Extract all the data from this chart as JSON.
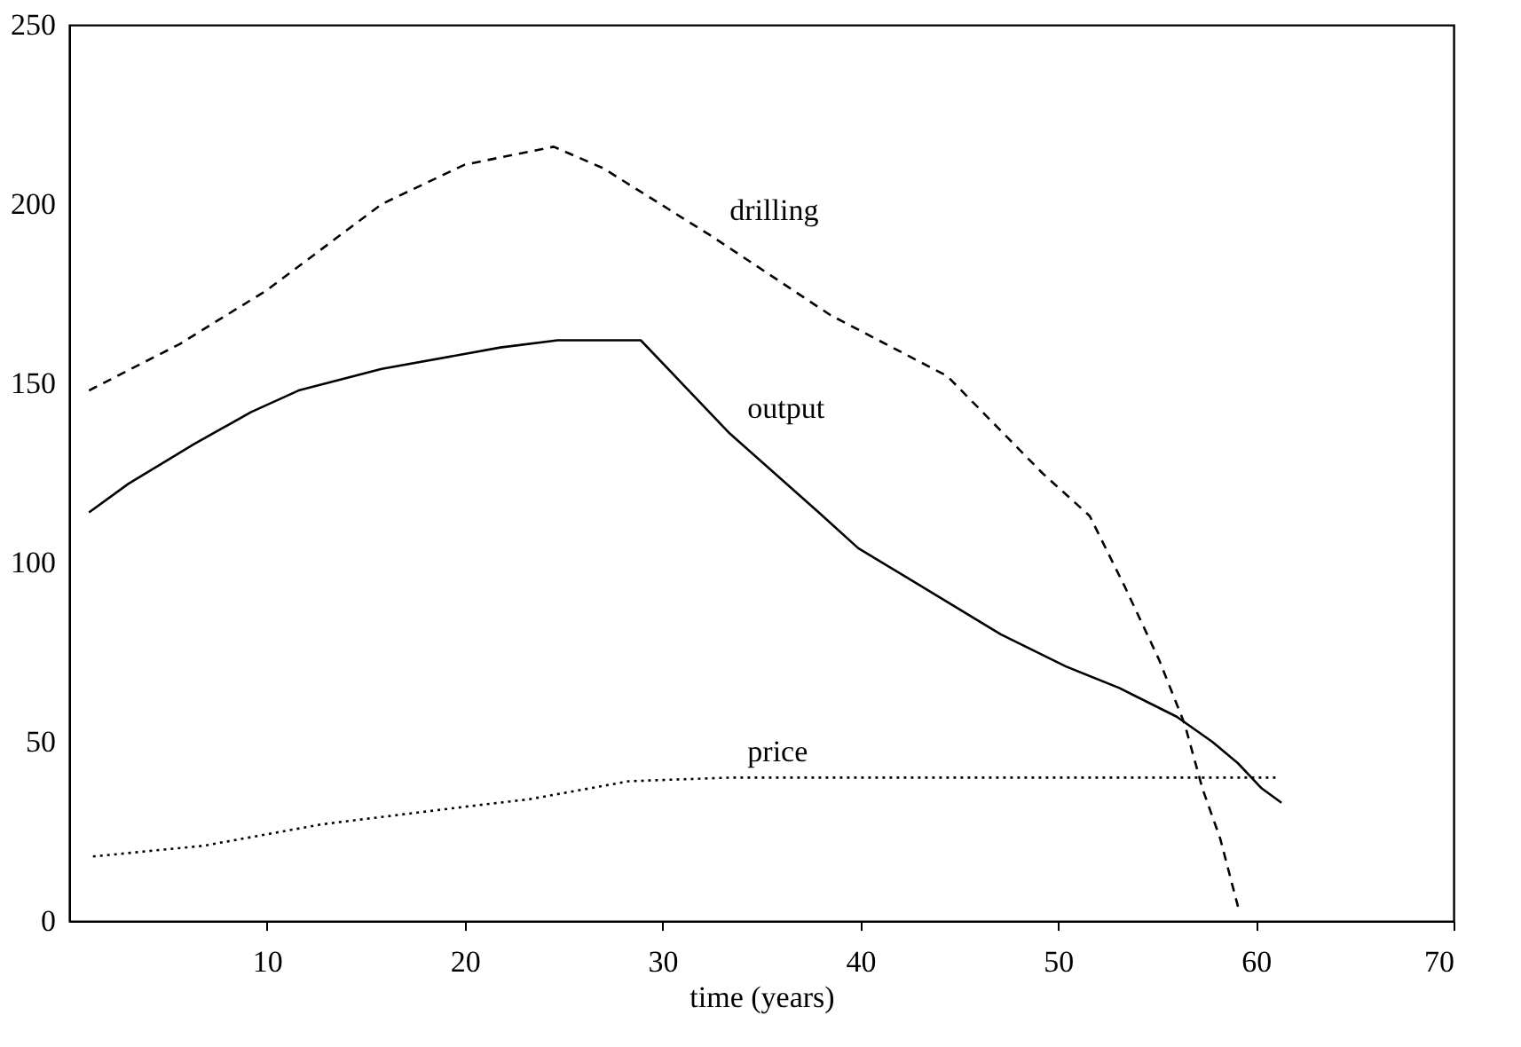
{
  "chart_data": {
    "type": "line",
    "xlabel": "time (years)",
    "xlim": [
      0,
      70
    ],
    "xticks": [
      10,
      20,
      30,
      40,
      50,
      60,
      70
    ],
    "ylim": [
      0,
      250
    ],
    "yticks": [
      0,
      50,
      100,
      150,
      200,
      250
    ],
    "grid": false,
    "marker": "none",
    "series": [
      {
        "name": "drilling",
        "color": "#000000",
        "line_style": "dashed",
        "x": [
          1,
          5.6,
          10,
          15.8,
          20,
          24.5,
          27,
          32.5,
          38.5,
          44.4,
          49.2,
          51.6,
          53.4,
          55.1,
          56.4,
          57.3,
          58.2,
          59.1
        ],
        "values": [
          148,
          161,
          176,
          200,
          211,
          216,
          210,
          191,
          169,
          152,
          125,
          113,
          93,
          73,
          55,
          37,
          23,
          4
        ]
      },
      {
        "name": "output",
        "color": "#000000",
        "line_style": "solid",
        "x": [
          1,
          3,
          6.3,
          9.2,
          11.6,
          15.8,
          21.8,
          24.7,
          28.9,
          33.4,
          37.9,
          39.9,
          44.1,
          47.1,
          50.4,
          53.1,
          56,
          57.8,
          59.1,
          60.3,
          61.3
        ],
        "values": [
          114,
          122,
          133,
          142,
          148,
          154,
          160,
          162,
          162,
          136,
          114,
          104,
          90,
          80,
          71,
          65,
          57,
          50,
          44,
          37,
          33
        ]
      },
      {
        "name": "price",
        "color": "#000000",
        "line_style": "dotted",
        "x": [
          1.2,
          6.8,
          12.8,
          20.2,
          23.3,
          28.3,
          33.4,
          45,
          61.1
        ],
        "values": [
          18,
          21,
          27,
          32,
          34,
          39,
          40,
          40,
          40
        ]
      }
    ]
  }
}
